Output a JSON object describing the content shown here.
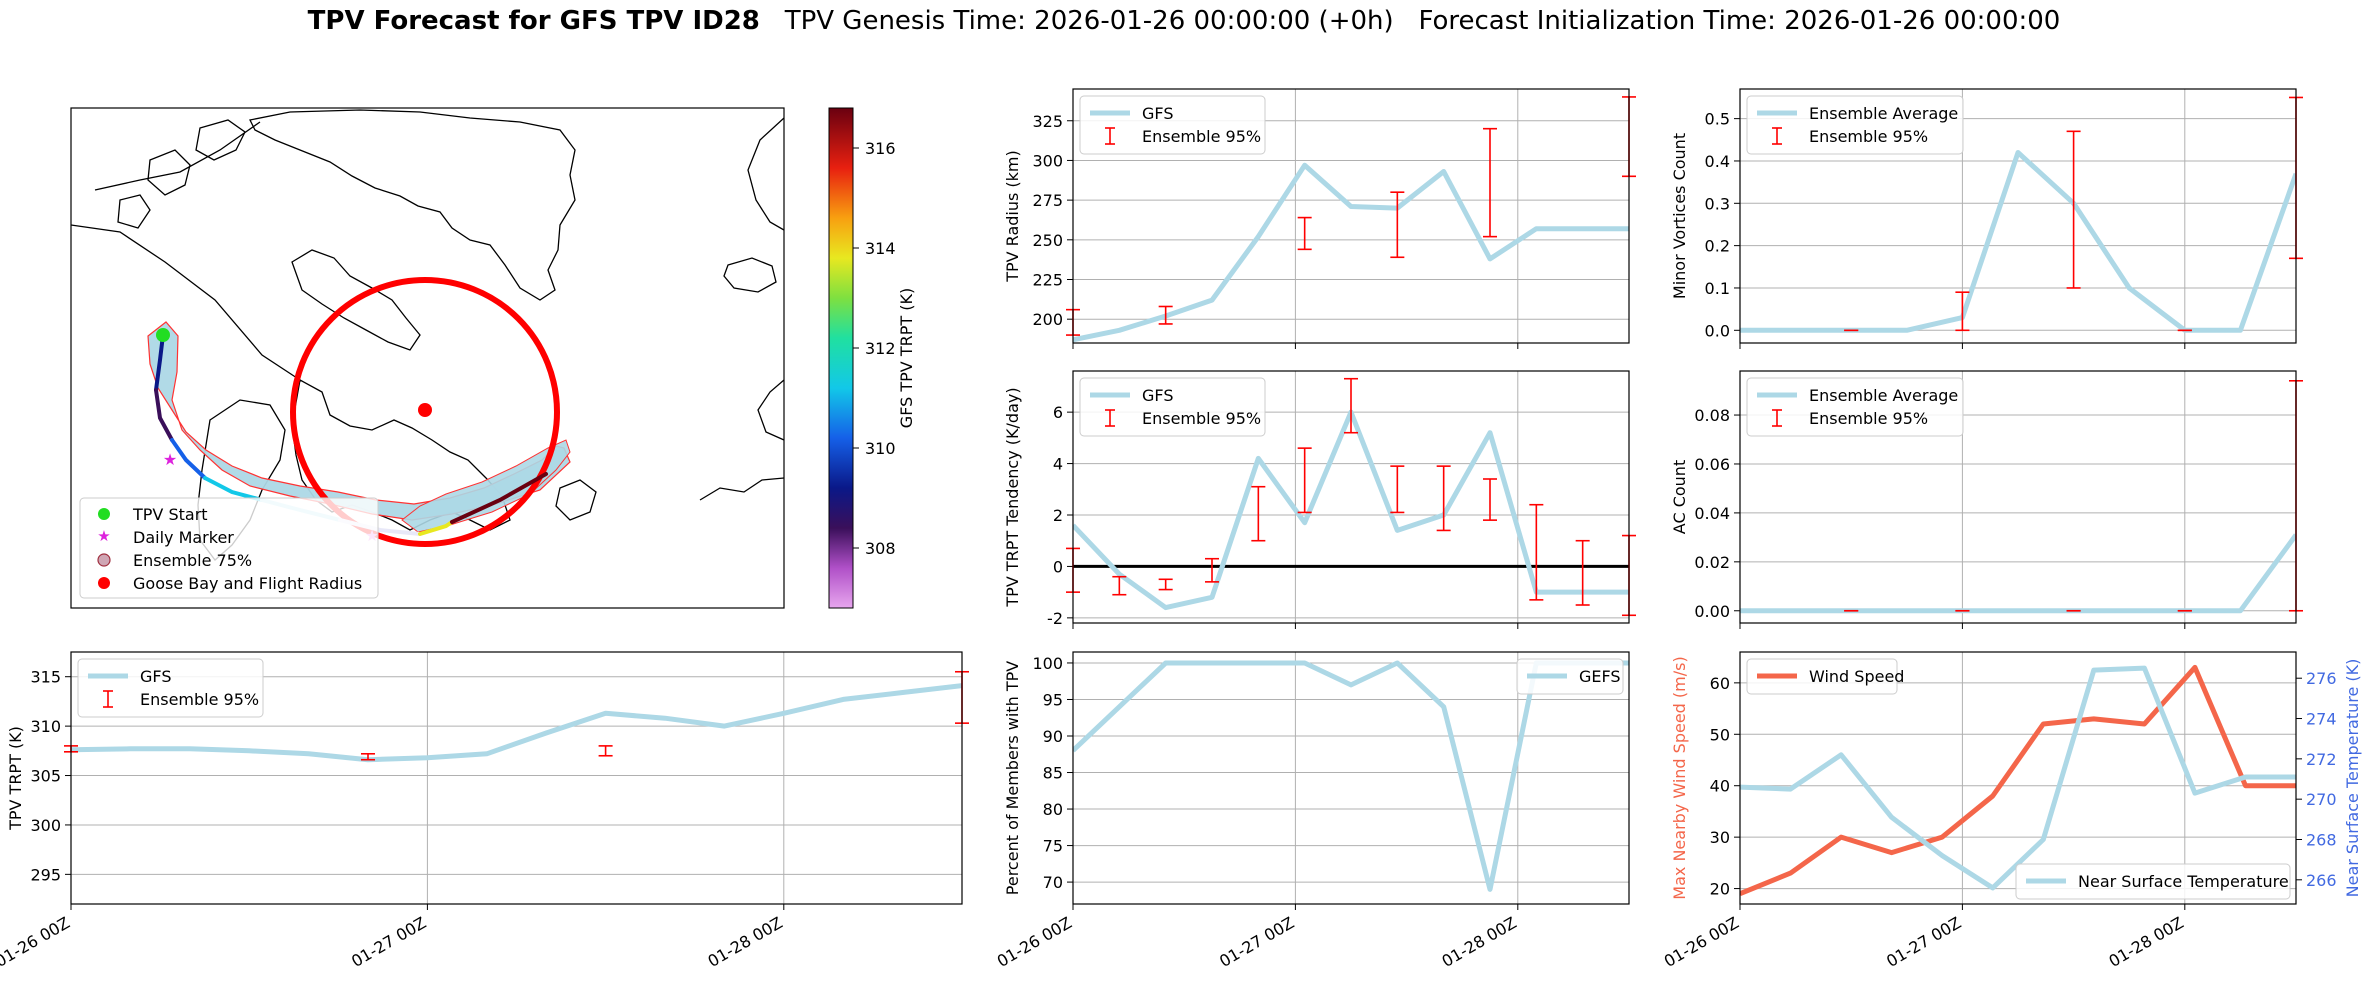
{
  "figure": {
    "title_bold": "TPV Forecast for GFS TPV ID28",
    "title_genesis": "TPV Genesis Time: 2026-01-26 00:00:00 (+0h)",
    "title_init": "Forecast Initialization Time: 2026-01-26 00:00:00"
  },
  "colors": {
    "series_blue": "#add8e6",
    "errorbar_red": "#ff0000",
    "wind_red": "#f4664a",
    "temp_axis_blue": "#4169e1"
  },
  "map": {
    "legend": [
      "TPV Start",
      "Daily Marker",
      "Ensemble 75%",
      "Goose Bay and Flight Radius"
    ],
    "colorbar_label": "GFS TPV TRPT (K)",
    "colorbar_ticks": [
      308,
      310,
      312,
      314,
      316
    ],
    "colorbar_range": [
      306.8,
      316.8
    ]
  },
  "time_ticks": [
    "01-26 00Z",
    "01-27 00Z",
    "01-28 00Z"
  ],
  "chart_data": [
    {
      "id": "trpt",
      "type": "line",
      "ylabel": "TPV TRPT (K)",
      "ylim": [
        292,
        317.5
      ],
      "yticks": [
        295,
        300,
        305,
        310,
        315
      ],
      "xlim": [
        0,
        15
      ],
      "series": [
        {
          "name": "GFS",
          "x": [
            0,
            1,
            2,
            3,
            4,
            5,
            6,
            7,
            8,
            9,
            10,
            11,
            12,
            13,
            14,
            15
          ],
          "values": [
            307.6,
            307.7,
            307.7,
            307.5,
            307.2,
            306.6,
            306.8,
            307.2,
            309.3,
            311.3,
            310.8,
            310.0,
            311.3,
            312.7,
            313.4,
            314.1
          ]
        }
      ],
      "errorbars": [
        {
          "x": 0,
          "lo": 307.4,
          "hi": 308.0
        },
        {
          "x": 5,
          "lo": 306.6,
          "hi": 307.2
        },
        {
          "x": 9,
          "lo": 307.0,
          "hi": 308.0
        },
        {
          "x": 15,
          "lo": 310.3,
          "hi": 315.5
        }
      ],
      "legend": [
        "GFS",
        "Ensemble 95%"
      ]
    },
    {
      "id": "radius",
      "type": "line",
      "ylabel": "TPV Radius (km)",
      "ylim": [
        185,
        345
      ],
      "yticks": [
        200,
        225,
        250,
        275,
        300,
        325
      ],
      "xlim": [
        0,
        12
      ],
      "series": [
        {
          "name": "GFS",
          "x": [
            0,
            1,
            2,
            3,
            4,
            5,
            6,
            7,
            8,
            9,
            10,
            11,
            12
          ],
          "values": [
            187,
            193,
            202,
            212,
            252,
            297,
            271,
            270,
            293,
            238,
            257,
            257,
            257
          ]
        }
      ],
      "errorbars": [
        {
          "x": 0,
          "lo": 190,
          "hi": 206
        },
        {
          "x": 2,
          "lo": 197,
          "hi": 208
        },
        {
          "x": 5,
          "lo": 244,
          "hi": 264
        },
        {
          "x": 7,
          "lo": 239,
          "hi": 280
        },
        {
          "x": 9,
          "lo": 252,
          "hi": 320
        },
        {
          "x": 12,
          "lo": 290,
          "hi": 340
        }
      ],
      "legend": [
        "GFS",
        "Ensemble 95%"
      ]
    },
    {
      "id": "tendency",
      "type": "line",
      "ylabel": "TPV TRPT Tendency (K/day)",
      "ylim": [
        -2.2,
        7.6
      ],
      "yticks": [
        -2,
        0,
        2,
        4,
        6
      ],
      "xlim": [
        0,
        12
      ],
      "series": [
        {
          "name": "GFS",
          "x": [
            0,
            1,
            2,
            3,
            4,
            5,
            6,
            7,
            8,
            9,
            10,
            11,
            12
          ],
          "values": [
            1.6,
            -0.3,
            -1.6,
            -1.2,
            4.2,
            1.7,
            6.0,
            1.4,
            2.0,
            5.2,
            -1.0,
            -1.0,
            -1.0
          ]
        }
      ],
      "errorbars": [
        {
          "x": 0,
          "lo": -1.0,
          "hi": 0.7
        },
        {
          "x": 1,
          "lo": -1.1,
          "hi": -0.4
        },
        {
          "x": 2,
          "lo": -0.9,
          "hi": -0.5
        },
        {
          "x": 3,
          "lo": -0.6,
          "hi": 0.3
        },
        {
          "x": 4,
          "lo": 1.0,
          "hi": 3.1
        },
        {
          "x": 5,
          "lo": 2.1,
          "hi": 4.6
        },
        {
          "x": 6,
          "lo": 5.2,
          "hi": 7.3
        },
        {
          "x": 7,
          "lo": 2.1,
          "hi": 3.9
        },
        {
          "x": 8,
          "lo": 1.4,
          "hi": 3.9
        },
        {
          "x": 9,
          "lo": 1.8,
          "hi": 3.4
        },
        {
          "x": 10,
          "lo": -1.3,
          "hi": 2.4
        },
        {
          "x": 11,
          "lo": -1.5,
          "hi": 1.0
        },
        {
          "x": 12,
          "lo": -1.9,
          "hi": 1.2
        }
      ],
      "zero_line": true,
      "legend": [
        "GFS",
        "Ensemble 95%"
      ]
    },
    {
      "id": "members",
      "type": "line",
      "ylabel": "Percent of Members with TPV",
      "ylim": [
        67,
        101.5
      ],
      "yticks": [
        70,
        75,
        80,
        85,
        90,
        95,
        100
      ],
      "xlim": [
        0,
        12
      ],
      "series": [
        {
          "name": "GEFS",
          "x": [
            0,
            1,
            2,
            3,
            4,
            5,
            6,
            7,
            8,
            9,
            10,
            11,
            12
          ],
          "values": [
            88,
            94,
            100,
            100,
            100,
            100,
            97,
            100,
            94,
            69,
            100,
            100,
            100
          ]
        }
      ],
      "errorbars": [],
      "legend": [
        "GEFS"
      ]
    },
    {
      "id": "minor",
      "type": "line",
      "ylabel": "Minor Vortices Count",
      "ylim": [
        -0.03,
        0.57
      ],
      "yticks": [
        0.0,
        0.1,
        0.2,
        0.3,
        0.4,
        0.5
      ],
      "xlim": [
        0,
        10
      ],
      "series": [
        {
          "name": "Ensemble Average",
          "x": [
            0,
            1,
            2,
            3,
            4,
            5,
            6,
            7,
            8,
            9,
            10
          ],
          "values": [
            0,
            0,
            0,
            0,
            0.03,
            0.42,
            0.3,
            0.1,
            0,
            0,
            0.37
          ]
        }
      ],
      "errorbars": [
        {
          "x": 2,
          "lo": 0,
          "hi": 0
        },
        {
          "x": 4,
          "lo": 0,
          "hi": 0.09
        },
        {
          "x": 6,
          "lo": 0.1,
          "hi": 0.47
        },
        {
          "x": 8,
          "lo": 0,
          "hi": 0
        },
        {
          "x": 10,
          "lo": 0.17,
          "hi": 0.55
        }
      ],
      "legend": [
        "Ensemble Average",
        "Ensemble 95%"
      ]
    },
    {
      "id": "ac",
      "type": "line",
      "ylabel": "AC Count",
      "ylim": [
        -0.005,
        0.098
      ],
      "yticks": [
        0.0,
        0.02,
        0.04,
        0.06,
        0.08
      ],
      "xlim": [
        0,
        10
      ],
      "series": [
        {
          "name": "Ensemble Average",
          "x": [
            0,
            1,
            2,
            3,
            4,
            5,
            6,
            7,
            8,
            9,
            10
          ],
          "values": [
            0,
            0,
            0,
            0,
            0,
            0,
            0,
            0,
            0,
            0,
            0.031
          ]
        }
      ],
      "errorbars": [
        {
          "x": 2,
          "lo": 0,
          "hi": 0
        },
        {
          "x": 4,
          "lo": 0,
          "hi": 0
        },
        {
          "x": 6,
          "lo": 0,
          "hi": 0
        },
        {
          "x": 8,
          "lo": 0,
          "hi": 0
        },
        {
          "x": 10,
          "lo": 0,
          "hi": 0.094
        }
      ],
      "legend": [
        "Ensemble Average",
        "Ensemble 95%"
      ]
    },
    {
      "id": "wind_temp",
      "type": "line",
      "ylabel": "Max Nearby Wind Speed (m/s)",
      "ylim": [
        17,
        66
      ],
      "yticks": [
        20,
        30,
        40,
        50,
        60
      ],
      "ylabel_right": "Near Surface Temperature (K)",
      "ylim_right": [
        264.8,
        277.3
      ],
      "yticks_right": [
        266,
        268,
        270,
        272,
        274,
        276
      ],
      "xlim": [
        0,
        11
      ],
      "series": [
        {
          "name": "Wind Speed",
          "axis": "left",
          "x": [
            0,
            1,
            2,
            3,
            4,
            5,
            6,
            7,
            8,
            9,
            10,
            11
          ],
          "values": [
            19,
            23,
            30,
            27,
            30,
            38,
            52,
            53,
            52,
            63,
            40,
            40
          ]
        },
        {
          "name": "Near Surface Temperature",
          "axis": "right",
          "x": [
            0,
            1,
            2,
            3,
            4,
            5,
            6,
            7,
            8,
            9,
            10,
            11
          ],
          "values": [
            270.6,
            270.5,
            272.2,
            269.1,
            267.2,
            265.6,
            268.0,
            276.4,
            276.5,
            270.3,
            271.1,
            271.1
          ]
        }
      ],
      "legend": [
        "Wind Speed",
        "Near Surface Temperature"
      ]
    }
  ]
}
